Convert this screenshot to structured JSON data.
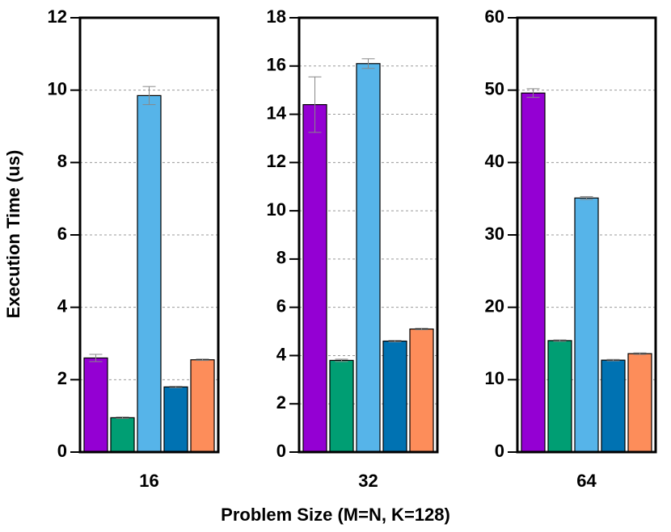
{
  "ylabel": "Execution Time (us)",
  "xlabel": "Problem Size (M=N, K=128)",
  "chart_data": [
    {
      "type": "bar",
      "categories": [
        "16"
      ],
      "ylim": [
        0,
        12
      ],
      "yticks": [
        0,
        2,
        4,
        6,
        8,
        10,
        12
      ],
      "grid": true,
      "series": [
        {
          "color": "#9400d3",
          "values": [
            2.6
          ],
          "errors": [
            0.1
          ]
        },
        {
          "color": "#009e73",
          "values": [
            0.95
          ],
          "errors": [
            0.02
          ]
        },
        {
          "color": "#56b4e9",
          "values": [
            9.85
          ],
          "errors": [
            0.25
          ]
        },
        {
          "color": "#0072b2",
          "values": [
            1.8
          ],
          "errors": [
            0.02
          ]
        },
        {
          "color": "#fd8d5a",
          "values": [
            2.55
          ],
          "errors": [
            0.02
          ]
        }
      ]
    },
    {
      "type": "bar",
      "categories": [
        "32"
      ],
      "ylim": [
        0,
        18
      ],
      "yticks": [
        0,
        2,
        4,
        6,
        8,
        10,
        12,
        14,
        16,
        18
      ],
      "grid": true,
      "series": [
        {
          "color": "#9400d3",
          "values": [
            14.4
          ],
          "errors": [
            1.15
          ]
        },
        {
          "color": "#009e73",
          "values": [
            3.8
          ],
          "errors": [
            0.05
          ]
        },
        {
          "color": "#56b4e9",
          "values": [
            16.1
          ],
          "errors": [
            0.2
          ]
        },
        {
          "color": "#0072b2",
          "values": [
            4.6
          ],
          "errors": [
            0.03
          ]
        },
        {
          "color": "#fd8d5a",
          "values": [
            5.1
          ],
          "errors": [
            0.03
          ]
        }
      ]
    },
    {
      "type": "bar",
      "categories": [
        "64"
      ],
      "ylim": [
        0,
        60
      ],
      "yticks": [
        0,
        10,
        20,
        30,
        40,
        50,
        60
      ],
      "grid": true,
      "series": [
        {
          "color": "#9400d3",
          "values": [
            49.6
          ],
          "errors": [
            0.6
          ]
        },
        {
          "color": "#009e73",
          "values": [
            15.4
          ],
          "errors": [
            0.1
          ]
        },
        {
          "color": "#56b4e9",
          "values": [
            35.1
          ],
          "errors": [
            0.2
          ]
        },
        {
          "color": "#0072b2",
          "values": [
            12.7
          ],
          "errors": [
            0.1
          ]
        },
        {
          "color": "#fd8d5a",
          "values": [
            13.6
          ],
          "errors": [
            0.1
          ]
        }
      ]
    }
  ]
}
